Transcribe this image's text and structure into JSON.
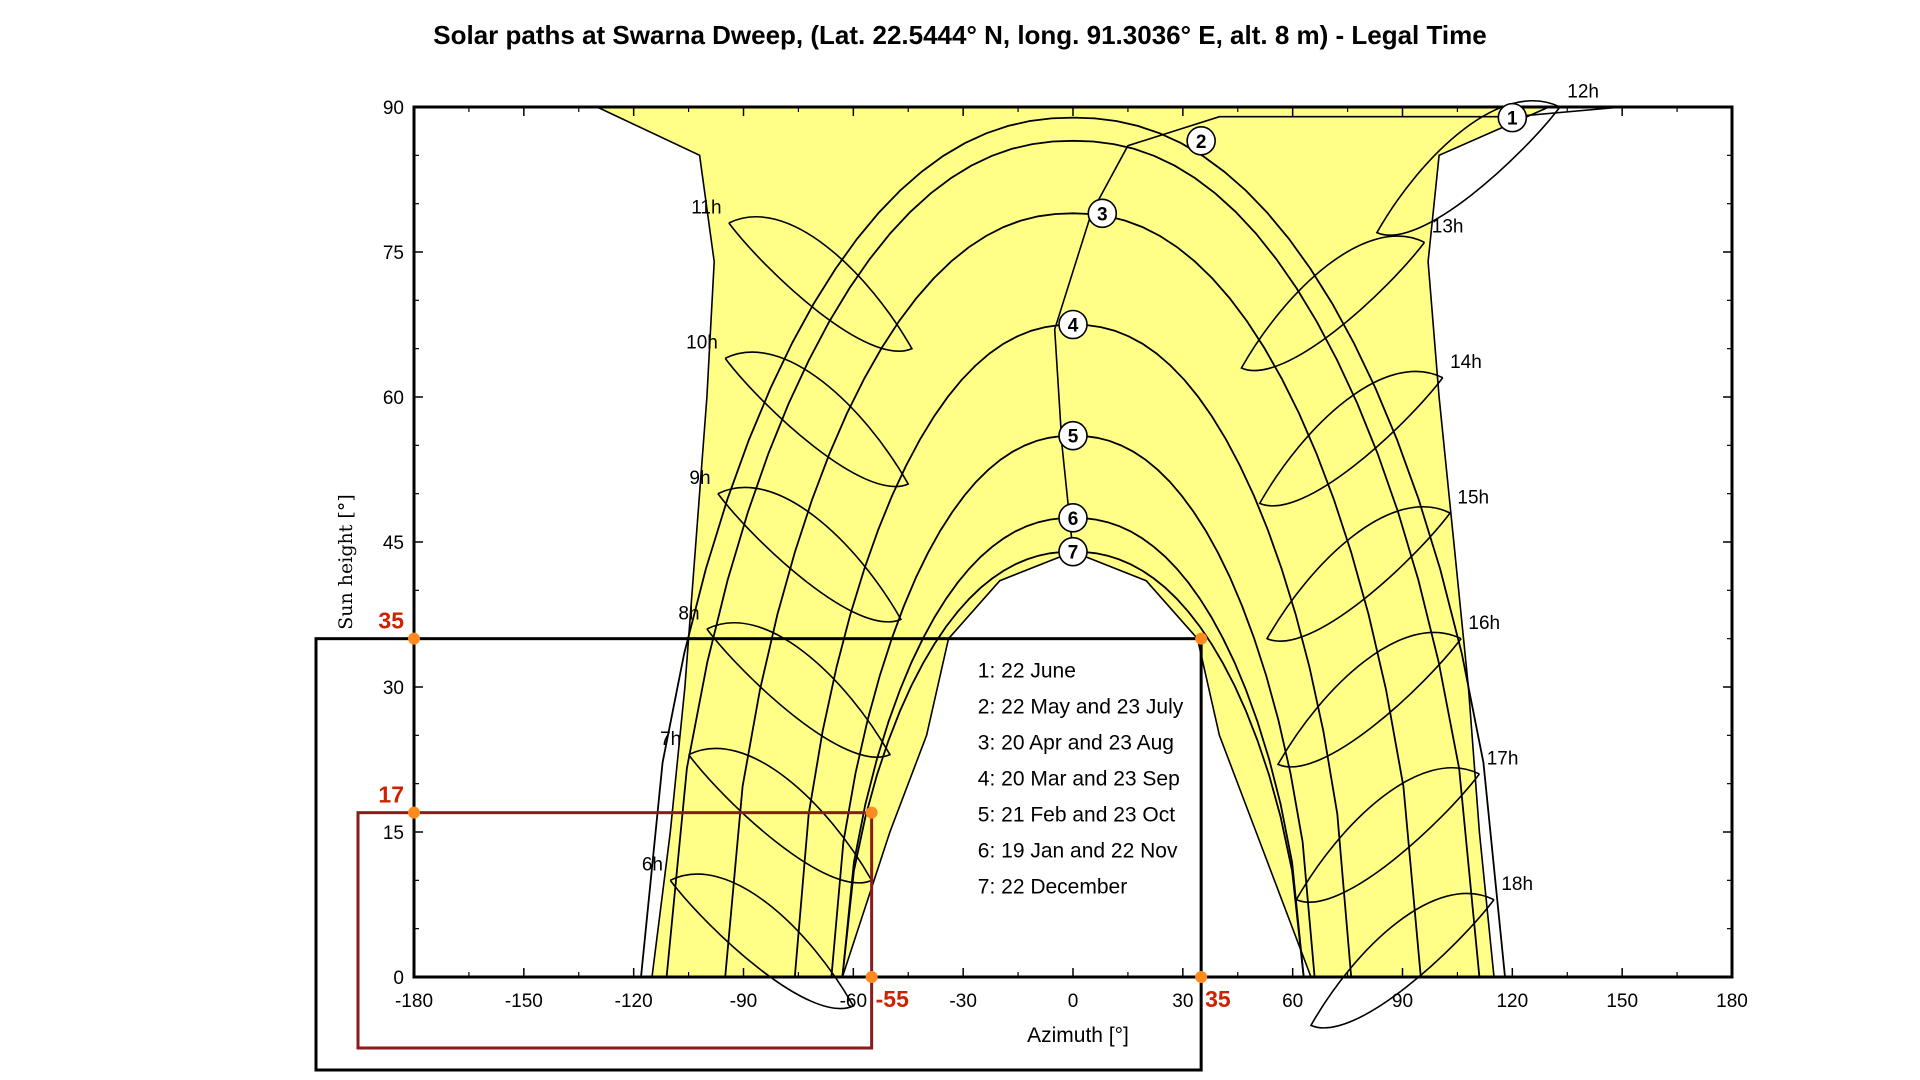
{
  "chart_data": {
    "type": "line",
    "title": "Solar paths at Swarna Dweep, (Lat. 22.5444° N, long. 91.3036° E, alt. 8 m) - Legal Time",
    "xlabel": "Azimuth [°]",
    "ylabel": "Sun height [°]",
    "xlim": [
      -180,
      180
    ],
    "ylim": [
      0,
      90
    ],
    "x_ticks": [
      -180,
      -150,
      -120,
      -90,
      -60,
      -30,
      0,
      30,
      60,
      90,
      120,
      150,
      180
    ],
    "y_ticks": [
      0,
      15,
      30,
      45,
      60,
      75,
      90
    ],
    "fill_color": "#ffff88",
    "line_color": "#000000",
    "highlight_color": "#cc2200",
    "date_paths": [
      {
        "id": "1",
        "name": "22 June",
        "noon_altitude": 88.9
      },
      {
        "id": "2",
        "name": "22 May and 23 July",
        "noon_altitude": 86.5
      },
      {
        "id": "3",
        "name": "20 Apr and 23 Aug",
        "noon_altitude": 79.0
      },
      {
        "id": "4",
        "name": "20 Mar and 23 Sep",
        "noon_altitude": 67.5
      },
      {
        "id": "5",
        "name": "21 Feb and 23 Oct",
        "noon_altitude": 56.0
      },
      {
        "id": "6",
        "name": "19 Jan and 22 Nov",
        "noon_altitude": 47.5
      },
      {
        "id": "7",
        "name": "22 December",
        "noon_altitude": 44.0
      }
    ],
    "hour_labels": [
      {
        "text": "6h",
        "azimuth": -112,
        "altitude": 11
      },
      {
        "text": "7h",
        "azimuth": -107,
        "altitude": 24
      },
      {
        "text": "8h",
        "azimuth": -102,
        "altitude": 37
      },
      {
        "text": "9h",
        "azimuth": -99,
        "altitude": 51
      },
      {
        "text": "10h",
        "azimuth": -97,
        "altitude": 65
      },
      {
        "text": "11h",
        "azimuth": -96,
        "altitude": 79
      },
      {
        "text": "12h",
        "azimuth": 135,
        "altitude": 91
      },
      {
        "text": "13h",
        "azimuth": 98,
        "altitude": 77
      },
      {
        "text": "14h",
        "azimuth": 103,
        "altitude": 63
      },
      {
        "text": "15h",
        "azimuth": 105,
        "altitude": 49
      },
      {
        "text": "16h",
        "azimuth": 108,
        "altitude": 36
      },
      {
        "text": "17h",
        "azimuth": 113,
        "altitude": 22
      },
      {
        "text": "18h",
        "azimuth": 117,
        "altitude": 9
      }
    ],
    "legend": [
      "1: 22 June",
      "2: 22 May and 23 July",
      "3: 20 Apr and 23 Aug",
      "4: 20 Mar and 23 Sep",
      "5: 21 Feb and 23 Oct",
      "6: 19 Jan and 22 Nov",
      "7: 22 December"
    ],
    "legend_placement": "center",
    "annotations": {
      "boxes": [
        {
          "name": "black-box",
          "x_range": [
            -180,
            35
          ],
          "y_range": [
            0,
            35
          ],
          "color": "#000000"
        },
        {
          "name": "red-box",
          "x_range": [
            -180,
            -55
          ],
          "y_range": [
            0,
            17
          ],
          "color": "#8b1a1a"
        }
      ],
      "points": [
        {
          "azimuth": -180,
          "altitude": 35
        },
        {
          "azimuth": 35,
          "altitude": 35
        },
        {
          "azimuth": -180,
          "altitude": 17
        },
        {
          "azimuth": -55,
          "altitude": 17
        },
        {
          "azimuth": -55,
          "altitude": 0
        },
        {
          "azimuth": 35,
          "altitude": 0
        }
      ],
      "point_color": "#ff8a1f",
      "labels": [
        {
          "text": "35",
          "azimuth": -180,
          "altitude": 35,
          "axis": "y"
        },
        {
          "text": "17",
          "azimuth": -180,
          "altitude": 17,
          "axis": "y"
        },
        {
          "text": "-55",
          "azimuth": -55,
          "altitude": 0,
          "axis": "x"
        },
        {
          "text": "35",
          "azimuth": 35,
          "altitude": 0,
          "axis": "x"
        }
      ]
    }
  }
}
